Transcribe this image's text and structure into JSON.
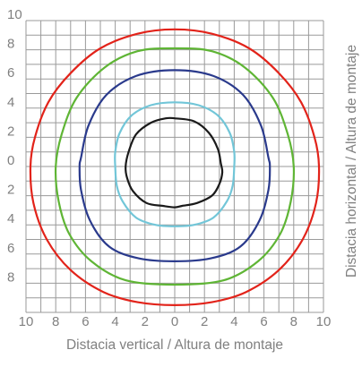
{
  "chart_data": {
    "type": "line",
    "title": "",
    "xlabel": "Distacia vertical / Altura de montaje",
    "ylabel": "Distacia horizontal / Altura de montaje",
    "xlim": [
      -10,
      10
    ],
    "ylim": [
      -10,
      10
    ],
    "grid": true,
    "legend": "none",
    "x_tick_labels": [
      "10",
      "8",
      "6",
      "4",
      "2",
      "0",
      "2",
      "4",
      "6",
      "8",
      "10"
    ],
    "y_tick_labels": [
      "10",
      "8",
      "6",
      "4",
      "2",
      "0",
      "2",
      "4",
      "6",
      "8"
    ],
    "y_tick_values": [
      10,
      8,
      6,
      4,
      2,
      0,
      -2,
      -4,
      -6,
      -8
    ],
    "colors": {
      "grid": "#9a9a9a",
      "text": "#808080"
    },
    "series": [
      {
        "color": "#e2231a",
        "points": [
          [
            0,
            9.4
          ],
          [
            2.5,
            9.1
          ],
          [
            5,
            8.1
          ],
          [
            7,
            6.4
          ],
          [
            8.5,
            4.4
          ],
          [
            9.4,
            2.0
          ],
          [
            9.7,
            0
          ],
          [
            9.5,
            -2.5
          ],
          [
            8.6,
            -5
          ],
          [
            7,
            -7.1
          ],
          [
            4.8,
            -8.6
          ],
          [
            2.5,
            -9.3
          ],
          [
            0,
            -9.5
          ],
          [
            -2.5,
            -9.3
          ],
          [
            -4.8,
            -8.6
          ],
          [
            -7,
            -7.1
          ],
          [
            -8.6,
            -5
          ],
          [
            -9.5,
            -2.5
          ],
          [
            -9.7,
            0
          ],
          [
            -9.4,
            2.0
          ],
          [
            -8.5,
            4.4
          ],
          [
            -7,
            6.4
          ],
          [
            -5,
            8.1
          ],
          [
            -2.5,
            9.1
          ]
        ]
      },
      {
        "color": "#5fb535",
        "points": [
          [
            0,
            8.1
          ],
          [
            2.5,
            7.9
          ],
          [
            4.7,
            6.8
          ],
          [
            6.6,
            4.7
          ],
          [
            7.6,
            2.2
          ],
          [
            8.0,
            0
          ],
          [
            7.8,
            -2.4
          ],
          [
            7.1,
            -4.6
          ],
          [
            5.6,
            -6.5
          ],
          [
            3.3,
            -7.8
          ],
          [
            0,
            -8.1
          ],
          [
            -3.3,
            -7.8
          ],
          [
            -5.6,
            -6.5
          ],
          [
            -7.1,
            -4.6
          ],
          [
            -7.8,
            -2.4
          ],
          [
            -8.0,
            0
          ],
          [
            -7.6,
            2.2
          ],
          [
            -6.6,
            4.7
          ],
          [
            -4.7,
            6.8
          ],
          [
            -2.5,
            7.9
          ]
        ]
      },
      {
        "color": "#2a3a8c",
        "points": [
          [
            0,
            6.6
          ],
          [
            2.6,
            6.2
          ],
          [
            4.6,
            4.9
          ],
          [
            5.8,
            2.8
          ],
          [
            6.3,
            0.6
          ],
          [
            6.4,
            0
          ],
          [
            6.3,
            -1.6
          ],
          [
            5.7,
            -3.7
          ],
          [
            4.4,
            -5.5
          ],
          [
            2.4,
            -6.3
          ],
          [
            0,
            -6.5
          ],
          [
            -2.4,
            -6.3
          ],
          [
            -4.4,
            -5.5
          ],
          [
            -5.7,
            -3.7
          ],
          [
            -6.3,
            -1.6
          ],
          [
            -6.4,
            0
          ],
          [
            -6.3,
            0.6
          ],
          [
            -5.8,
            2.8
          ],
          [
            -4.6,
            4.9
          ],
          [
            -2.6,
            6.2
          ]
        ]
      },
      {
        "color": "#72c6d8",
        "points": [
          [
            0,
            4.4
          ],
          [
            1.6,
            4.2
          ],
          [
            2.9,
            3.5
          ],
          [
            3.7,
            2.3
          ],
          [
            4.0,
            1.0
          ],
          [
            4.0,
            0
          ],
          [
            3.9,
            -1.3
          ],
          [
            3.5,
            -2.4
          ],
          [
            2.6,
            -3.5
          ],
          [
            1.3,
            -4.0
          ],
          [
            0,
            -4.1
          ],
          [
            -1.3,
            -4.0
          ],
          [
            -2.6,
            -3.5
          ],
          [
            -3.5,
            -2.4
          ],
          [
            -3.9,
            -1.3
          ],
          [
            -4.0,
            0
          ],
          [
            -4.0,
            1.0
          ],
          [
            -3.7,
            2.3
          ],
          [
            -2.9,
            3.5
          ],
          [
            -1.6,
            4.2
          ]
        ]
      },
      {
        "color": "#1a1a1a",
        "points": [
          [
            0,
            3.3
          ],
          [
            1.3,
            3.1
          ],
          [
            2.3,
            2.3
          ],
          [
            2.9,
            1.2
          ],
          [
            3.1,
            0.2
          ],
          [
            3.2,
            -0.4
          ],
          [
            3.0,
            -1.2
          ],
          [
            2.5,
            -2.0
          ],
          [
            1.5,
            -2.5
          ],
          [
            0.5,
            -2.7
          ],
          [
            0,
            -2.8
          ],
          [
            -0.8,
            -2.7
          ],
          [
            -1.9,
            -2.5
          ],
          [
            -2.8,
            -1.7
          ],
          [
            -3.2,
            -0.8
          ],
          [
            -3.3,
            0
          ],
          [
            -3.1,
            1.0
          ],
          [
            -2.6,
            2.2
          ],
          [
            -1.6,
            3.0
          ],
          [
            -0.6,
            3.3
          ]
        ]
      }
    ]
  }
}
